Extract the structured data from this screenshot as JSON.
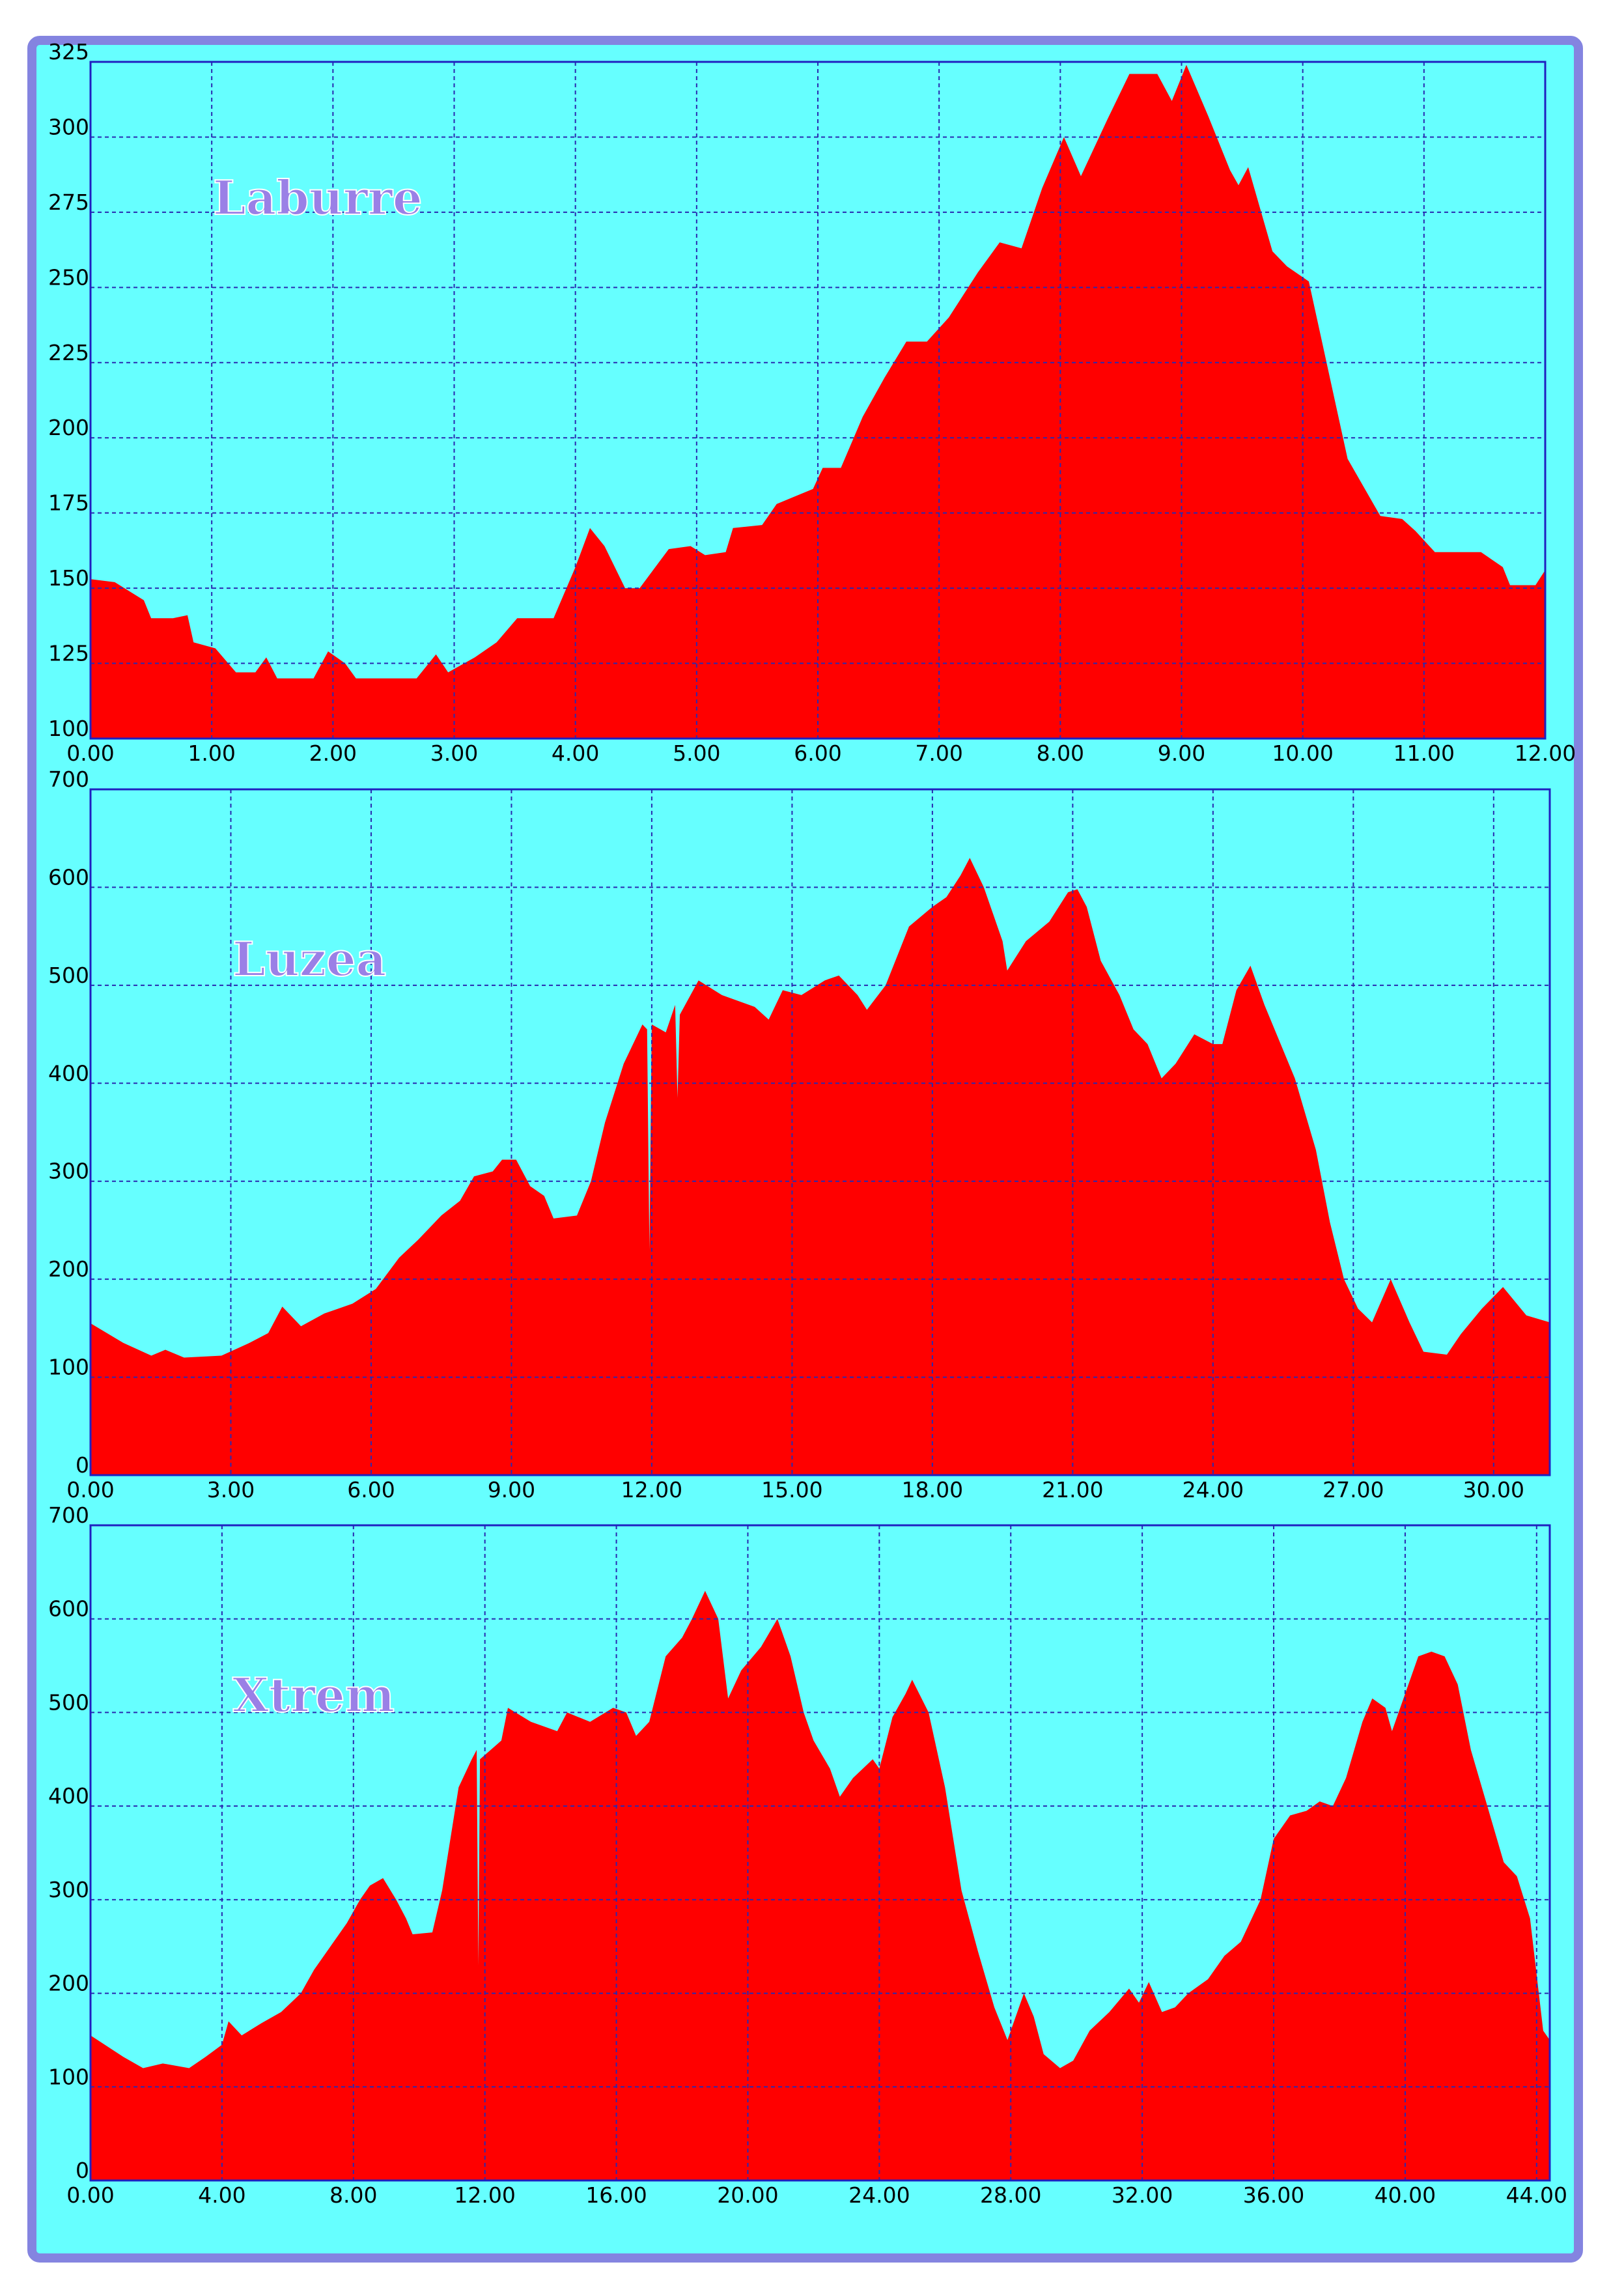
{
  "chart_data": [
    {
      "type": "area",
      "title": "Laburre",
      "color": "#ff0000",
      "grid": true,
      "xlim": [
        0,
        12
      ],
      "ylim": [
        100,
        325
      ],
      "xticks": [
        {
          "value": 0,
          "label": "0.00"
        },
        {
          "value": 1,
          "label": "1.00"
        },
        {
          "value": 2,
          "label": "2.00"
        },
        {
          "value": 3,
          "label": "3.00"
        },
        {
          "value": 4,
          "label": "4.00"
        },
        {
          "value": 5,
          "label": "5.00"
        },
        {
          "value": 6,
          "label": "6.00"
        },
        {
          "value": 7,
          "label": "7.00"
        },
        {
          "value": 8,
          "label": "8.00"
        },
        {
          "value": 9,
          "label": "9.00"
        },
        {
          "value": 10,
          "label": "10.00"
        },
        {
          "value": 11,
          "label": "11.00"
        },
        {
          "value": 12,
          "label": "12.00"
        }
      ],
      "yticks": [
        100,
        125,
        150,
        175,
        200,
        225,
        250,
        275,
        300,
        325
      ],
      "x": [
        0,
        0.2,
        0.44,
        0.5,
        0.68,
        0.8,
        0.85,
        1.03,
        1.2,
        1.36,
        1.45,
        1.54,
        1.84,
        1.96,
        2.1,
        2.19,
        2.69,
        2.85,
        2.95,
        3.17,
        3.35,
        3.52,
        3.82,
        4.0,
        4.12,
        4.24,
        4.41,
        4.53,
        4.77,
        4.95,
        5.07,
        5.24,
        5.3,
        5.54,
        5.66,
        5.96,
        6.04,
        6.19,
        6.37,
        6.55,
        6.73,
        6.9,
        7.08,
        7.32,
        7.5,
        7.68,
        7.85,
        8.03,
        8.17,
        8.39,
        8.57,
        8.8,
        8.92,
        9.04,
        9.22,
        9.4,
        9.47,
        9.55,
        9.75,
        9.87,
        10.05,
        10.37,
        10.64,
        10.82,
        10.93,
        11.09,
        11.47,
        11.65,
        11.71,
        11.92,
        12.0
      ],
      "values": [
        153,
        152,
        146,
        140,
        140,
        141,
        132,
        130,
        122,
        122,
        127,
        120,
        120,
        129,
        125,
        120,
        120,
        128,
        122,
        127,
        132,
        140,
        140,
        157,
        170,
        164,
        150,
        150,
        163,
        164,
        161,
        162,
        170,
        171,
        178,
        183,
        190,
        190,
        207,
        220,
        232,
        232,
        240,
        255,
        265,
        263,
        283,
        300,
        287,
        306,
        321,
        321,
        312,
        324,
        307,
        289,
        284,
        290,
        262,
        257,
        252,
        193,
        174,
        173,
        169,
        162,
        162,
        157,
        151,
        151,
        156
      ]
    },
    {
      "type": "area",
      "title": "Luzea",
      "color": "#ff0000",
      "grid": true,
      "xlim": [
        0,
        31.2
      ],
      "ylim": [
        0,
        700
      ],
      "xticks": [
        {
          "value": 0,
          "label": "0.00"
        },
        {
          "value": 3,
          "label": "3.00"
        },
        {
          "value": 6,
          "label": "6.00"
        },
        {
          "value": 9,
          "label": "9.00"
        },
        {
          "value": 12,
          "label": "12.00"
        },
        {
          "value": 15,
          "label": "15.00"
        },
        {
          "value": 18,
          "label": "18.00"
        },
        {
          "value": 21,
          "label": "21.00"
        },
        {
          "value": 24,
          "label": "24.00"
        },
        {
          "value": 27,
          "label": "27.00"
        },
        {
          "value": 30,
          "label": "30.00"
        }
      ],
      "yticks": [
        0,
        100,
        200,
        300,
        400,
        500,
        600,
        700
      ],
      "x": [
        0,
        0.7,
        1.3,
        1.6,
        2.0,
        2.8,
        3.4,
        3.8,
        4.1,
        4.5,
        5.0,
        5.6,
        6.1,
        6.6,
        7.0,
        7.5,
        7.9,
        8.2,
        8.6,
        8.8,
        9.1,
        9.4,
        9.7,
        9.9,
        10.4,
        10.7,
        11.0,
        11.4,
        11.8,
        11.9,
        11.95,
        12.0,
        12.3,
        12.5,
        12.55,
        12.6,
        13.0,
        13.5,
        14.2,
        14.5,
        14.8,
        15.2,
        15.7,
        16.0,
        16.4,
        16.6,
        17.0,
        17.5,
        18.0,
        18.3,
        18.6,
        18.8,
        19.1,
        19.5,
        19.6,
        20.0,
        20.5,
        20.9,
        21.1,
        21.3,
        21.6,
        22.0,
        22.3,
        22.6,
        22.9,
        23.2,
        23.6,
        24.0,
        24.2,
        24.5,
        24.8,
        25.1,
        25.75,
        26.2,
        26.5,
        26.8,
        27.1,
        27.4,
        27.8,
        28.2,
        28.5,
        29.0,
        29.3,
        29.75,
        30.2,
        30.7,
        31.2
      ],
      "values": [
        155,
        135,
        122,
        128,
        120,
        122,
        135,
        145,
        172,
        152,
        165,
        175,
        190,
        222,
        240,
        265,
        280,
        305,
        310,
        322,
        322,
        295,
        285,
        262,
        265,
        300,
        360,
        420,
        460,
        455,
        230,
        460,
        452,
        480,
        385,
        470,
        505,
        490,
        478,
        465,
        495,
        490,
        505,
        510,
        490,
        475,
        500,
        560,
        580,
        590,
        612,
        630,
        600,
        545,
        515,
        545,
        565,
        595,
        598,
        580,
        525,
        490,
        455,
        440,
        405,
        420,
        450,
        440,
        440,
        495,
        520,
        480,
        405,
        332,
        258,
        200,
        170,
        156,
        200,
        156,
        126,
        123,
        144,
        170,
        192,
        163,
        156
      ]
    },
    {
      "type": "area",
      "title": "Xtrem",
      "color": "#ff0000",
      "grid": true,
      "xlim": [
        0,
        44.4
      ],
      "ylim": [
        0,
        700
      ],
      "xticks": [
        {
          "value": 0,
          "label": "0.00"
        },
        {
          "value": 4,
          "label": "4.00"
        },
        {
          "value": 8,
          "label": "8.00"
        },
        {
          "value": 12,
          "label": "12.00"
        },
        {
          "value": 16,
          "label": "16.00"
        },
        {
          "value": 20,
          "label": "20.00"
        },
        {
          "value": 24,
          "label": "24.00"
        },
        {
          "value": 28,
          "label": "28.00"
        },
        {
          "value": 32,
          "label": "32.00"
        },
        {
          "value": 36,
          "label": "36.00"
        },
        {
          "value": 40,
          "label": "40.00"
        },
        {
          "value": 44,
          "label": "44.00"
        }
      ],
      "yticks": [
        0,
        100,
        200,
        300,
        400,
        500,
        600,
        700
      ],
      "x": [
        0,
        1,
        1.6,
        2.2,
        3.0,
        3.5,
        4.0,
        4.2,
        4.6,
        5.2,
        5.8,
        6.4,
        6.8,
        7.4,
        7.8,
        8.2,
        8.5,
        8.9,
        9.3,
        9.6,
        9.8,
        10.4,
        10.7,
        11.2,
        11.6,
        11.75,
        11.8,
        11.85,
        12.5,
        12.7,
        13.4,
        14.2,
        14.5,
        15.2,
        15.9,
        16.3,
        16.6,
        17.0,
        17.5,
        18.0,
        18.3,
        18.7,
        19.1,
        19.4,
        19.8,
        20.4,
        20.9,
        21.3,
        21.7,
        22.0,
        22.5,
        22.8,
        23.2,
        23.8,
        24.0,
        24.4,
        24.8,
        25.0,
        25.5,
        26.0,
        26.5,
        27.0,
        27.5,
        27.9,
        28.4,
        28.7,
        29.0,
        29.5,
        29.9,
        30.4,
        31.0,
        31.6,
        31.9,
        32.2,
        32.6,
        33.0,
        33.4,
        34.0,
        34.5,
        35.0,
        35.6,
        36.0,
        36.5,
        37.0,
        37.4,
        37.8,
        38.2,
        38.7,
        39.0,
        39.4,
        39.6,
        40.0,
        40.4,
        40.8,
        41.2,
        41.6,
        42.0,
        42.5,
        43.0,
        43.4,
        43.8,
        44.0,
        44.2,
        44.4
      ],
      "values": [
        155,
        132,
        120,
        125,
        120,
        132,
        145,
        170,
        155,
        168,
        180,
        200,
        225,
        255,
        275,
        300,
        315,
        323,
        300,
        280,
        263,
        265,
        310,
        420,
        450,
        460,
        230,
        450,
        470,
        505,
        490,
        480,
        500,
        490,
        505,
        500,
        475,
        490,
        560,
        580,
        600,
        630,
        600,
        515,
        545,
        570,
        600,
        560,
        500,
        470,
        440,
        410,
        430,
        450,
        440,
        495,
        520,
        535,
        500,
        420,
        310,
        245,
        185,
        150,
        200,
        175,
        135,
        120,
        128,
        160,
        180,
        205,
        190,
        212,
        180,
        185,
        200,
        215,
        240,
        255,
        300,
        365,
        390,
        395,
        405,
        400,
        430,
        490,
        515,
        505,
        480,
        520,
        560,
        565,
        560,
        530,
        460,
        400,
        340,
        325,
        280,
        220,
        160,
        150
      ]
    }
  ]
}
